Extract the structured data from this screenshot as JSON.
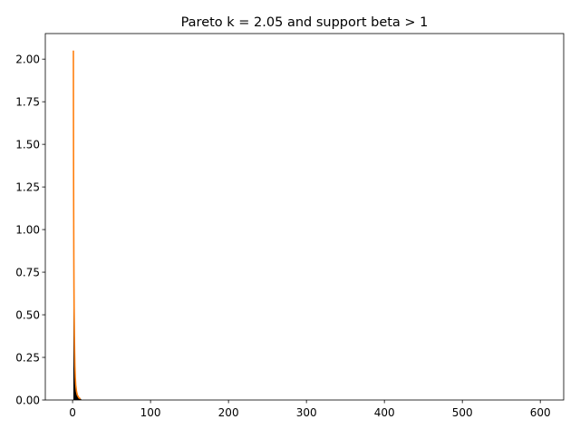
{
  "chart_data": {
    "type": "bar",
    "title": "Pareto k = 2.05 and support beta > 1",
    "xlabel": "",
    "ylabel": "",
    "xlim": [
      -35,
      630
    ],
    "ylim": [
      0,
      2.15
    ],
    "xticks": [
      0,
      100,
      200,
      300,
      400,
      500,
      600
    ],
    "xtick_labels": [
      "0",
      "100",
      "200",
      "300",
      "400",
      "500",
      "600"
    ],
    "yticks": [
      0,
      0.25,
      0.5,
      0.75,
      1.0,
      1.25,
      1.5,
      1.75,
      2.0
    ],
    "ytick_labels": [
      "0.00",
      "0.25",
      "0.50",
      "0.75",
      "1.00",
      "1.25",
      "1.50",
      "1.75",
      "2.00"
    ],
    "grid": false,
    "legend": "none",
    "series": [
      {
        "type": "histogram",
        "color": "#000000",
        "bin_width": 0.6,
        "x": [
          1.0,
          1.6,
          2.2,
          2.8,
          3.4,
          4.0,
          4.6,
          5.2,
          5.8,
          6.4,
          7.0,
          7.6,
          8.2,
          8.8,
          9.4,
          10.0
        ],
        "values": [
          1.02,
          0.52,
          0.27,
          0.14,
          0.09,
          0.06,
          0.045,
          0.035,
          0.028,
          0.022,
          0.018,
          0.014,
          0.011,
          0.009,
          0.007,
          0.006
        ]
      },
      {
        "type": "line",
        "color": "#ff7f0e",
        "x": [
          1.0,
          1.05,
          1.1,
          1.2,
          1.3,
          1.4,
          1.5,
          1.6,
          1.8,
          2.0,
          2.3,
          2.6,
          3.0,
          3.5,
          4.0,
          5.0,
          6.0,
          8.0,
          10.0
        ],
        "values": [
          2.05,
          1.88,
          1.72,
          1.47,
          1.27,
          1.1,
          0.96,
          0.84,
          0.66,
          0.52,
          0.38,
          0.29,
          0.2,
          0.13,
          0.09,
          0.05,
          0.03,
          0.013,
          0.007
        ]
      }
    ]
  }
}
